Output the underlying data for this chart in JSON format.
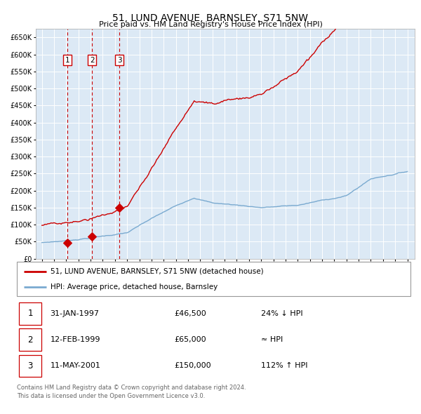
{
  "title": "51, LUND AVENUE, BARNSLEY, S71 5NW",
  "subtitle": "Price paid vs. HM Land Registry's House Price Index (HPI)",
  "plot_bg_color": "#dce9f5",
  "grid_color": "#ffffff",
  "red_line_color": "#cc0000",
  "blue_line_color": "#7aaad0",
  "sale_points": [
    {
      "date_num": 1997.08,
      "price": 46500,
      "label": "1"
    },
    {
      "date_num": 1999.12,
      "price": 65000,
      "label": "2"
    },
    {
      "date_num": 2001.37,
      "price": 150000,
      "label": "3"
    }
  ],
  "vline_dates": [
    1997.08,
    1999.12,
    2001.37
  ],
  "legend_entries": [
    {
      "label": "51, LUND AVENUE, BARNSLEY, S71 5NW (detached house)",
      "color": "#cc0000"
    },
    {
      "label": "HPI: Average price, detached house, Barnsley",
      "color": "#7aaad0"
    }
  ],
  "table_rows": [
    {
      "num": "1",
      "date": "31-JAN-1997",
      "price": "£46,500",
      "hpi": "24% ↓ HPI"
    },
    {
      "num": "2",
      "date": "12-FEB-1999",
      "price": "£65,000",
      "hpi": "≈ HPI"
    },
    {
      "num": "3",
      "date": "11-MAY-2001",
      "price": "£150,000",
      "hpi": "112% ↑ HPI"
    }
  ],
  "footer": "Contains HM Land Registry data © Crown copyright and database right 2024.\nThis data is licensed under the Open Government Licence v3.0.",
  "ylabel_ticks": [
    "£0",
    "£50K",
    "£100K",
    "£150K",
    "£200K",
    "£250K",
    "£300K",
    "£350K",
    "£400K",
    "£450K",
    "£500K",
    "£550K",
    "£600K",
    "£650K"
  ],
  "ytick_values": [
    0,
    50000,
    100000,
    150000,
    200000,
    250000,
    300000,
    350000,
    400000,
    450000,
    500000,
    550000,
    600000,
    650000
  ],
  "ylim": [
    0,
    675000
  ],
  "xlim_start": 1994.5,
  "xlim_end": 2025.6,
  "xtick_years": [
    1995,
    1996,
    1997,
    1998,
    1999,
    2000,
    2001,
    2002,
    2003,
    2004,
    2005,
    2006,
    2007,
    2008,
    2009,
    2010,
    2011,
    2012,
    2013,
    2014,
    2015,
    2016,
    2017,
    2018,
    2019,
    2020,
    2021,
    2022,
    2023,
    2024,
    2025
  ]
}
